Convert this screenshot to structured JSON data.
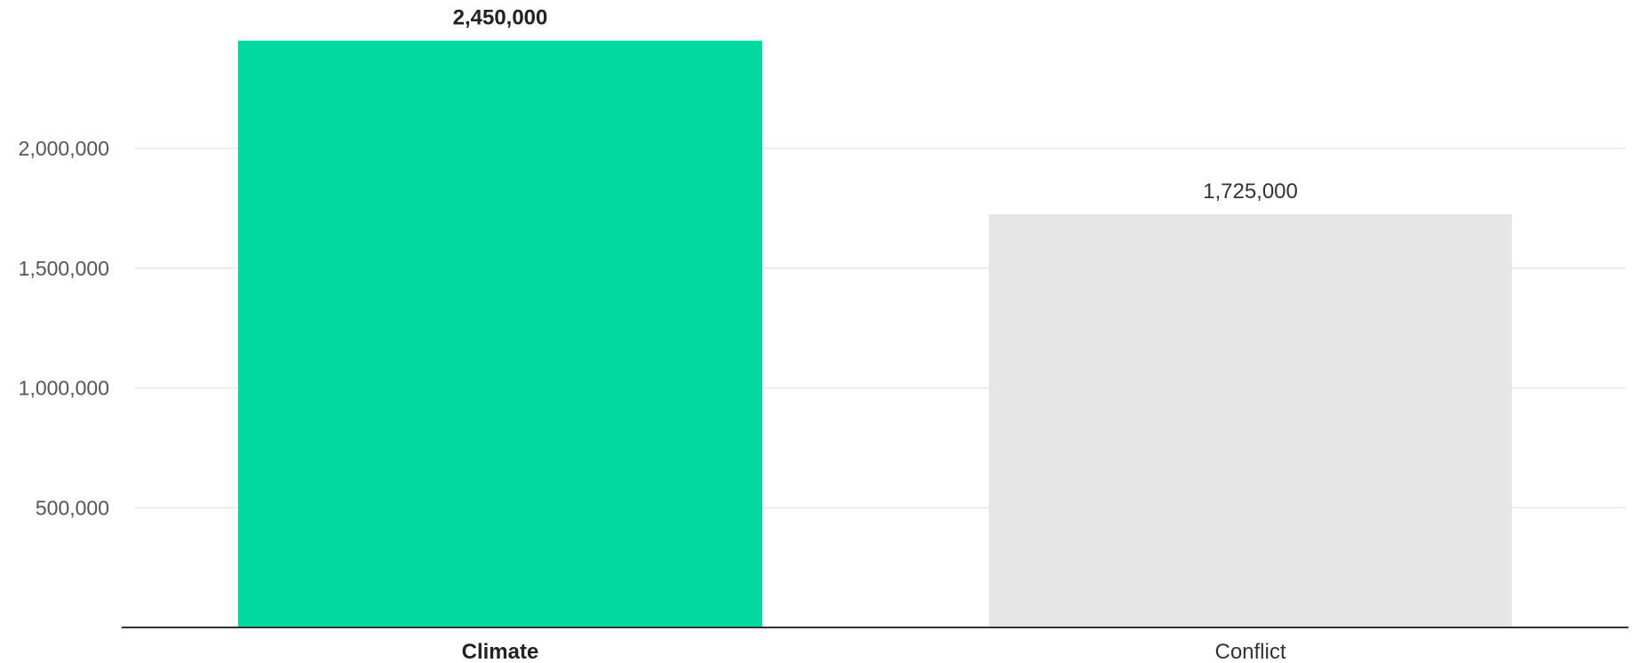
{
  "chart_data": {
    "type": "bar",
    "title": "",
    "xlabel": "",
    "ylabel": "",
    "categories": [
      "Climate",
      "Conflict"
    ],
    "values": [
      2450000,
      1725000
    ],
    "value_labels": [
      "2,450,000",
      "1,725,000"
    ],
    "highlighted_category": "Climate",
    "bar_colors": [
      "#00d9a0",
      "#e6e6e6"
    ],
    "ylim": [
      0,
      2450000
    ],
    "yticks": [
      500000,
      1000000,
      1500000,
      2000000
    ],
    "ytick_labels": [
      "500,000",
      "1,000,000",
      "1,500,000",
      "2,000,000"
    ],
    "grid": true,
    "legend": "none"
  }
}
